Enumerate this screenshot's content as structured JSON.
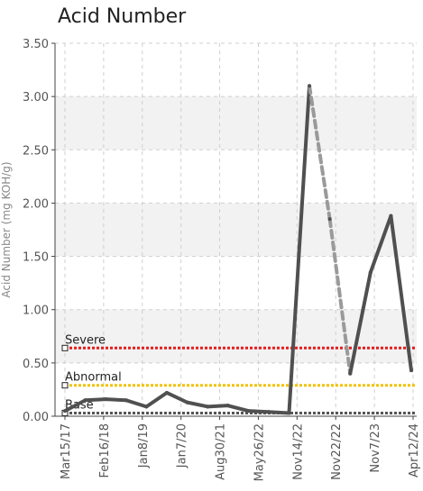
{
  "chart_data": {
    "type": "line",
    "title": "Acid Number",
    "ylabel": "Acid Number (mg KOH/g)",
    "xlabel": "",
    "ylim": [
      0,
      3.5
    ],
    "yticks": [
      "0.00",
      "0.50",
      "1.00",
      "1.50",
      "2.00",
      "2.50",
      "3.00",
      "3.50"
    ],
    "xticks": [
      "Mar15/17",
      "Feb16/18",
      "Jan8/19",
      "Jan7/20",
      "Aug30/21",
      "May26/22",
      "Nov14/22",
      "Nov22/22",
      "Nov7/23",
      "Apr12/24"
    ],
    "grid": true,
    "series": [
      {
        "values": [
          0.05,
          0.15,
          0.16,
          0.15,
          0.09,
          0.22,
          0.13,
          0.09,
          0.1,
          0.05,
          0.04,
          0.03,
          3.1,
          1.85,
          0.4,
          1.35,
          1.88,
          0.43
        ],
        "dashed_segments": [
          12,
          13
        ]
      }
    ],
    "thresholds": [
      {
        "name": "Severe",
        "value": 0.64,
        "color": "#e51c1c"
      },
      {
        "name": "Abnormal",
        "value": 0.29,
        "color": "#f2c200"
      },
      {
        "name": "Base",
        "value": 0.03,
        "color": "#555555"
      }
    ],
    "colors": {
      "line": "#505050",
      "dashed": "#9a9a9a",
      "band": "#f2f2f2",
      "grid": "#cfcfcf"
    }
  }
}
